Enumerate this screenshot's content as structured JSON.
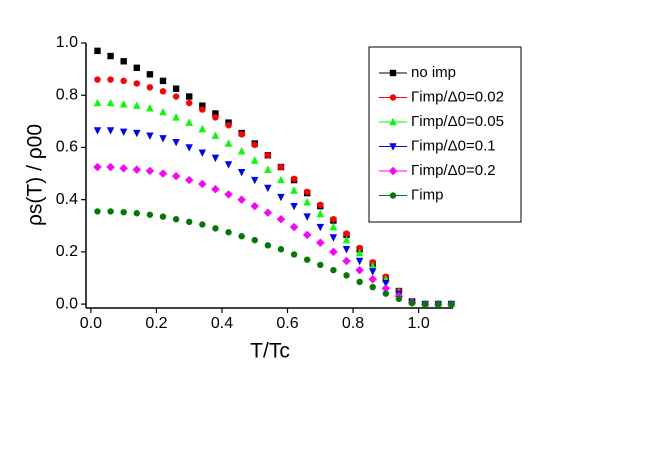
{
  "chart_data": {
    "type": "scatter",
    "xlabel": "T/Tc",
    "ylabel": "ρs(T) / ρ00",
    "xlim": [
      -0.015,
      1.105
    ],
    "ylim": [
      -0.015,
      1.0
    ],
    "xticks": [
      {
        "value": 0,
        "label": "0.0"
      },
      0.2,
      0.4,
      0.6,
      0.8,
      {
        "value": 1,
        "label": "1.0"
      }
    ],
    "yticks": [
      {
        "value": 0,
        "label": "0.0"
      },
      0.2,
      0.4,
      0.6,
      0.8,
      {
        "value": 1,
        "label": "1.0"
      }
    ],
    "legend": "top-right",
    "x": [
      0.02,
      0.06,
      0.1,
      0.14,
      0.18,
      0.22,
      0.26,
      0.3,
      0.34,
      0.38,
      0.42,
      0.46,
      0.5,
      0.54,
      0.58,
      0.62,
      0.66,
      0.7,
      0.74,
      0.78,
      0.82,
      0.86,
      0.9,
      0.94,
      0.98,
      1.02,
      1.06,
      1.1
    ],
    "series": [
      {
        "name": "no imp",
        "color": "#000000",
        "marker": "square",
        "values": [
          0.97,
          0.95,
          0.93,
          0.905,
          0.88,
          0.855,
          0.825,
          0.795,
          0.76,
          0.73,
          0.695,
          0.655,
          0.615,
          0.57,
          0.525,
          0.475,
          0.425,
          0.375,
          0.32,
          0.265,
          0.21,
          0.155,
          0.1,
          0.05,
          0.01,
          0,
          0,
          0
        ]
      },
      {
        "name": "Γimp/Δ0=0.02",
        "color": "#ff0000",
        "marker": "circle",
        "values": [
          0.86,
          0.86,
          0.855,
          0.845,
          0.83,
          0.815,
          0.795,
          0.77,
          0.745,
          0.715,
          0.685,
          0.65,
          0.61,
          0.57,
          0.525,
          0.48,
          0.43,
          0.38,
          0.325,
          0.27,
          0.215,
          0.16,
          0.105,
          0.05,
          0.01,
          0,
          0,
          0
        ]
      },
      {
        "name": "Γimp/Δ0=0.05",
        "color": "#00ff00",
        "marker": "triangle-up",
        "values": [
          0.77,
          0.77,
          0.765,
          0.76,
          0.75,
          0.735,
          0.715,
          0.695,
          0.67,
          0.645,
          0.615,
          0.585,
          0.55,
          0.515,
          0.475,
          0.435,
          0.39,
          0.345,
          0.295,
          0.245,
          0.195,
          0.145,
          0.095,
          0.045,
          0.008,
          0,
          0,
          0
        ]
      },
      {
        "name": "Γimp/Δ0=0.1",
        "color": "#0000ff",
        "marker": "triangle-down",
        "values": [
          0.665,
          0.665,
          0.66,
          0.655,
          0.645,
          0.635,
          0.62,
          0.6,
          0.58,
          0.56,
          0.535,
          0.505,
          0.475,
          0.445,
          0.41,
          0.375,
          0.335,
          0.295,
          0.255,
          0.21,
          0.165,
          0.125,
          0.08,
          0.04,
          0.006,
          0,
          0,
          0
        ]
      },
      {
        "name": "Γimp/Δ0=0.2",
        "color": "#ff00ff",
        "marker": "diamond",
        "values": [
          0.525,
          0.525,
          0.52,
          0.515,
          0.51,
          0.5,
          0.49,
          0.475,
          0.46,
          0.44,
          0.42,
          0.4,
          0.375,
          0.35,
          0.325,
          0.295,
          0.265,
          0.235,
          0.2,
          0.165,
          0.13,
          0.095,
          0.06,
          0.03,
          0.005,
          0,
          0,
          0
        ]
      },
      {
        "name": "Γimp",
        "color": "#007a00",
        "marker": "circle",
        "values": [
          0.355,
          0.355,
          0.352,
          0.348,
          0.342,
          0.335,
          0.325,
          0.315,
          0.305,
          0.29,
          0.275,
          0.26,
          0.245,
          0.225,
          0.21,
          0.19,
          0.17,
          0.15,
          0.13,
          0.11,
          0.085,
          0.065,
          0.04,
          0.02,
          0.004,
          0,
          0,
          0
        ]
      }
    ]
  }
}
